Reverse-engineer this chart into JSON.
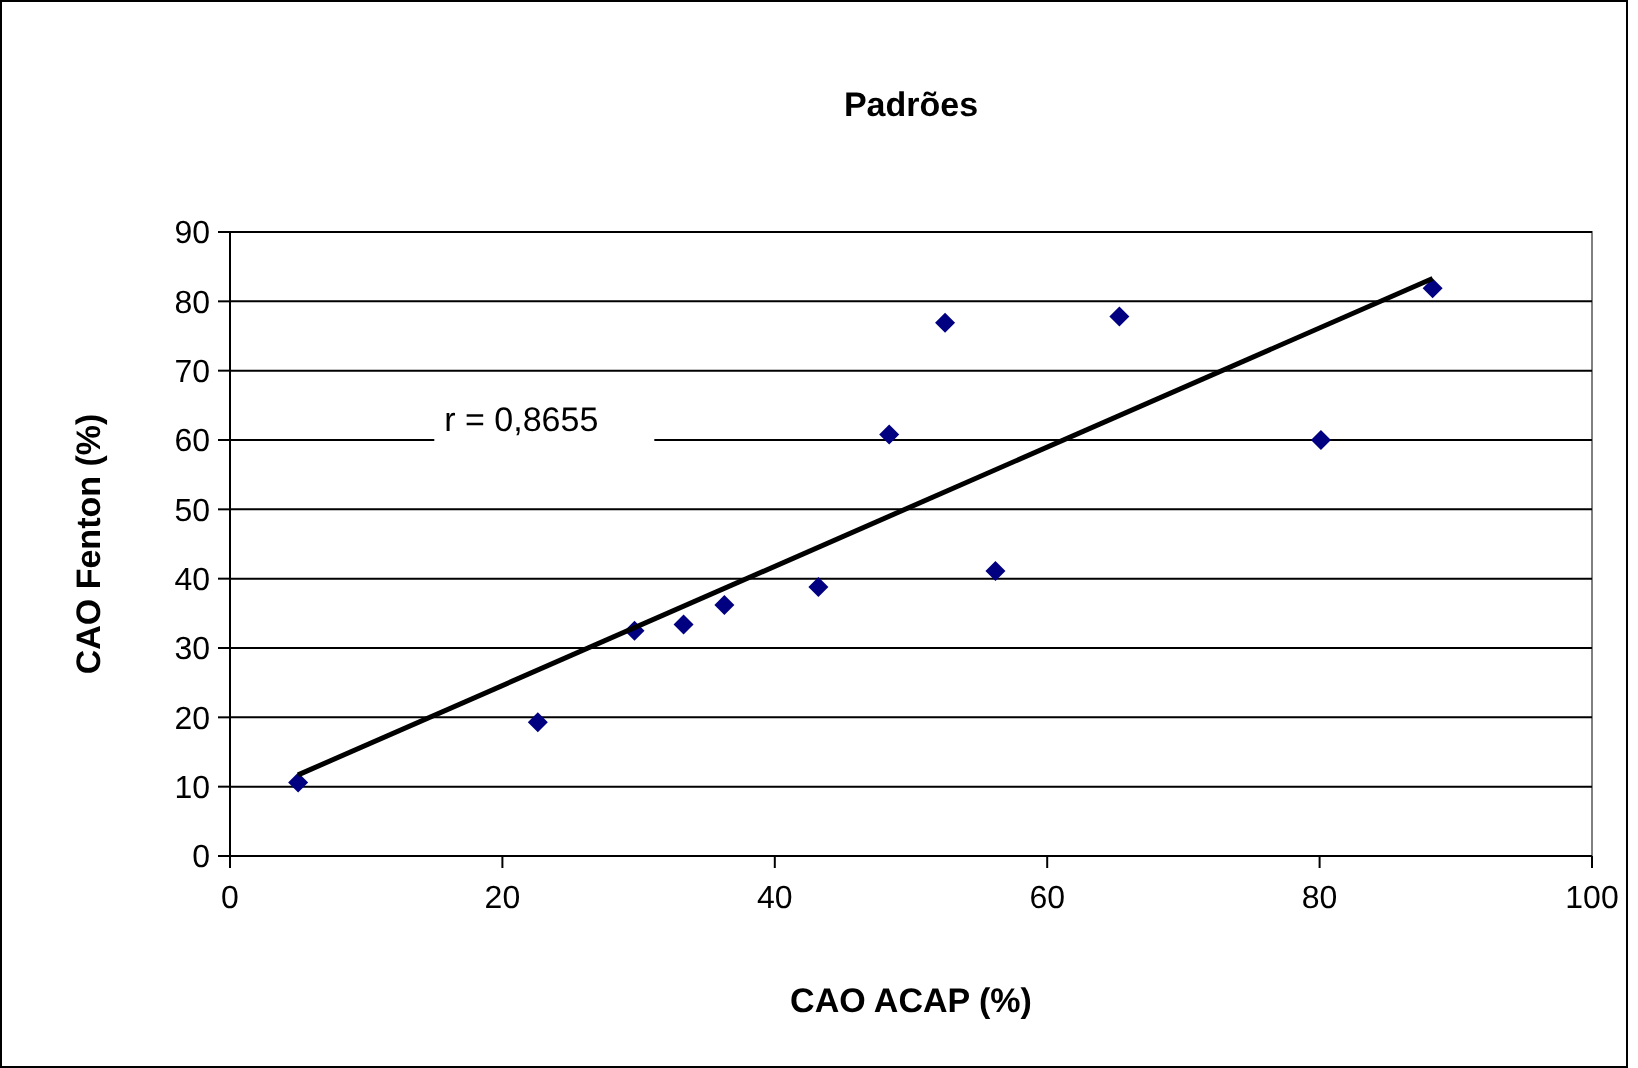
{
  "chart_data": {
    "type": "scatter",
    "title": "Padrões",
    "xlabel": "CAO ACAP (%)",
    "ylabel": "CAO Fenton (%)",
    "xlim": [
      0,
      100
    ],
    "xticks": [
      0,
      20,
      40,
      60,
      80,
      100
    ],
    "ylim": [
      0,
      90
    ],
    "yticks": [
      0,
      10,
      20,
      30,
      40,
      50,
      60,
      70,
      80,
      90
    ],
    "grid": "y",
    "annotations": [
      "r = 0,8655"
    ],
    "series": [
      {
        "marker": "diamond",
        "color": "#000080",
        "x": [
          5.0,
          22.6,
          29.7,
          33.3,
          36.3,
          43.2,
          48.4,
          52.5,
          56.2,
          65.3,
          80.1,
          88.3
        ],
        "values": [
          10.6,
          19.3,
          32.5,
          33.4,
          36.2,
          38.8,
          60.8,
          76.9,
          41.1,
          77.8,
          60.0,
          81.9
        ]
      },
      {
        "type": "line",
        "color": "#000000",
        "x": [
          5.0,
          88.3
        ],
        "values": [
          11.7,
          83.3
        ]
      }
    ]
  }
}
